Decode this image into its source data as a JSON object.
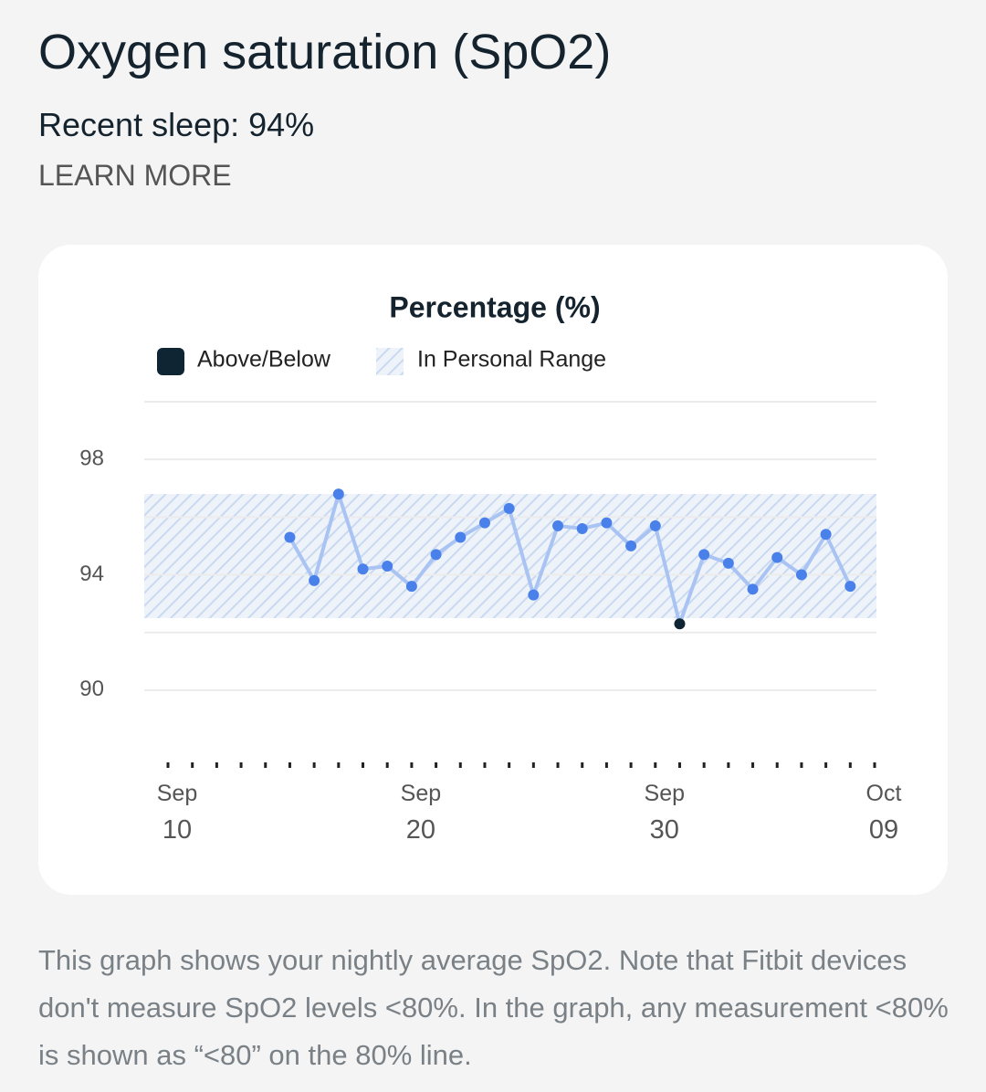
{
  "header": {
    "title": "Oxygen saturation (SpO2)",
    "subtitle": "Recent sleep: 94%",
    "link": "LEARN MORE"
  },
  "chart_data": {
    "type": "line",
    "title": "Percentage (%)",
    "legend": [
      {
        "name": "Above/Below",
        "color": "#0f2533"
      },
      {
        "name": "In Personal Range",
        "color": "#c9d9f1"
      }
    ],
    "categories": [
      "Sep 10",
      null,
      null,
      null,
      null,
      null,
      null,
      null,
      null,
      null,
      "Sep 20",
      null,
      null,
      null,
      null,
      null,
      null,
      null,
      null,
      null,
      "Sep 30",
      null,
      null,
      null,
      null,
      null,
      null,
      null,
      null,
      "Oct 09"
    ],
    "series": [
      {
        "name": "SpO2",
        "color": "#4a80ea",
        "line_color": "#a9c3f3",
        "values": [
          null,
          null,
          null,
          null,
          null,
          95.3,
          93.8,
          96.8,
          94.2,
          94.3,
          93.6,
          94.7,
          95.3,
          95.8,
          96.3,
          93.3,
          95.7,
          95.6,
          95.8,
          95.0,
          95.7,
          92.3,
          94.7,
          94.4,
          93.5,
          94.6,
          94.0,
          95.4,
          93.6,
          null
        ]
      }
    ],
    "out_of_range_color": "#0f2533",
    "range": [
      92.5,
      96.8
    ],
    "ylim": [
      87.4,
      100
    ],
    "yticks": [
      90,
      94,
      98
    ],
    "grid_values": [
      90,
      92,
      94,
      96,
      98,
      100
    ],
    "grid": true
  },
  "footnote": "This graph shows your nightly average SpO2. Note that Fitbit devices don't measure SpO2 levels <80%. In the graph, any measurement <80% is shown as “<80” on the 80% line."
}
